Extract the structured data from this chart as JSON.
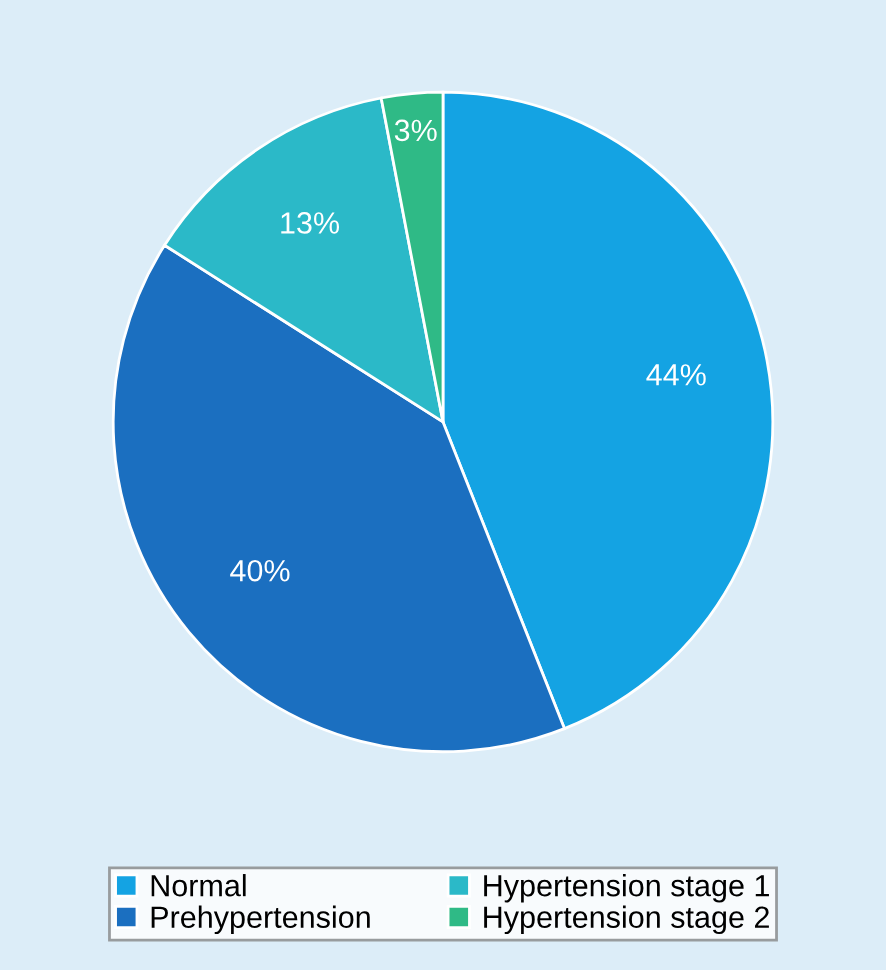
{
  "chart_data": {
    "type": "pie",
    "categories": [
      "Normal",
      "Prehypertension",
      "Hypertension stage 1",
      "Hypertension stage 2"
    ],
    "values": [
      44,
      40,
      13,
      3
    ],
    "colors": [
      "#14a3e3",
      "#1b6fc0",
      "#2bb9c8",
      "#2fba86"
    ],
    "value_labels": [
      "44%",
      "40%",
      "13%",
      "3%"
    ],
    "legend": "bottom"
  }
}
